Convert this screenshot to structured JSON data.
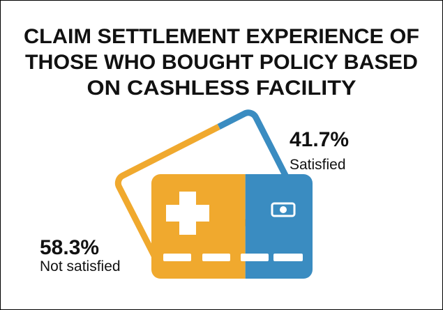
{
  "chart_data": {
    "type": "card",
    "title": [
      "CLAIM SETTLEMENT EXPERIENCE OF",
      "THOSE WHO BOUGHT POLICY BASED",
      "ON CASHLESS FACILITY"
    ],
    "categories": [
      "Not satisfied",
      "Satisfied"
    ],
    "values": [
      58.3,
      41.7
    ],
    "value_labels": [
      "58.3%",
      "41.7%"
    ],
    "colors": [
      "#f0a92e",
      "#3a8cc1"
    ]
  }
}
